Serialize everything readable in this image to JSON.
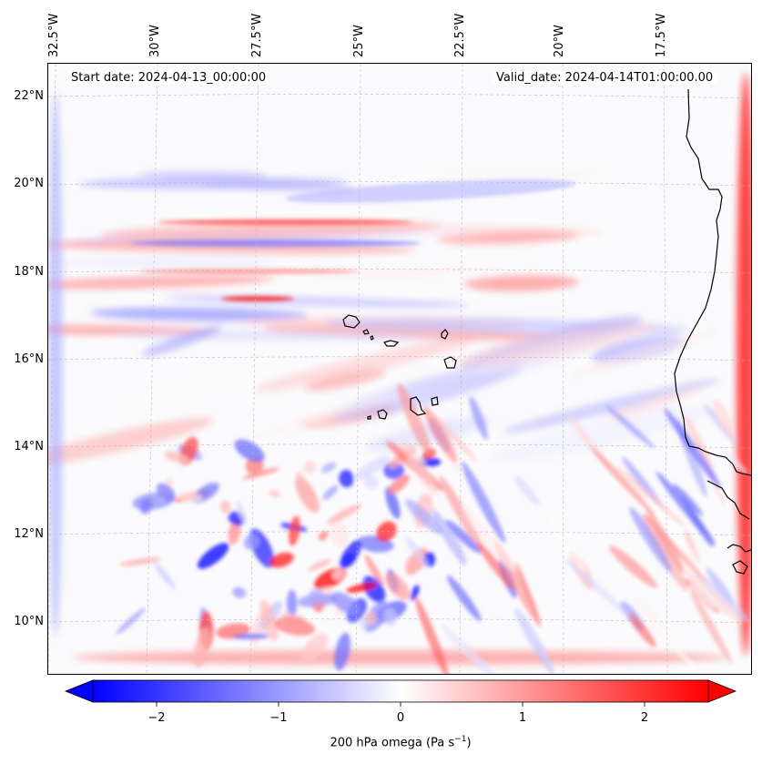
{
  "header": {
    "start_date": "Start date: 2024-04-13_00:00:00",
    "valid_date": "Valid_date: 2024-04-14T01:00:00.00"
  },
  "longitude_labels": [
    "32.5°W",
    "30°W",
    "27.5°W",
    "25°W",
    "22.5°W",
    "20°W",
    "17.5°W"
  ],
  "latitude_labels": [
    "22°N",
    "20°N",
    "18°N",
    "16°N",
    "14°N",
    "12°N",
    "10°N"
  ],
  "colorbar": {
    "label_prefix": "200 hPa omega (Pa s",
    "label_exponent": "−1",
    "label_suffix": ")",
    "ticks": [
      "−2",
      "−1",
      "0",
      "1",
      "2"
    ],
    "min": -2.7,
    "max": 2.7,
    "colors": {
      "low": "#0000ff",
      "mid": "#ffffff",
      "high": "#ff0000"
    },
    "extend": "both"
  },
  "map": {
    "colormap": "bwr",
    "coastline_color": "#000000",
    "gridlines": "dashed"
  }
}
